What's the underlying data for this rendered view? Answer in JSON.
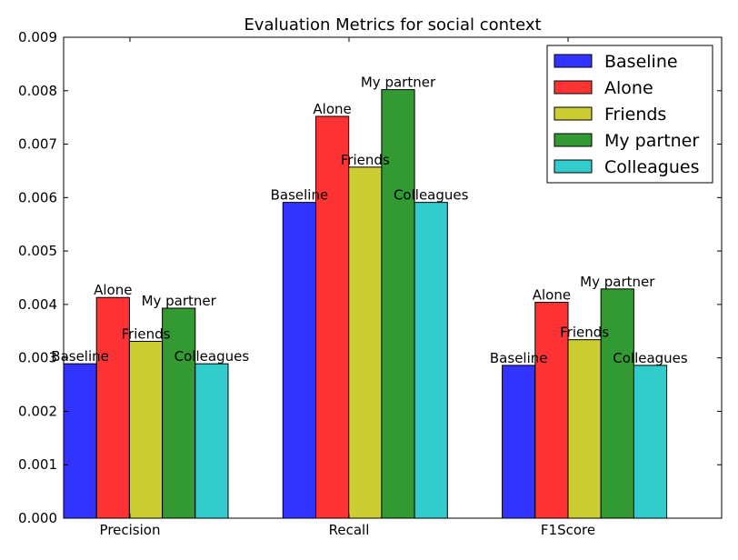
{
  "chart_data": {
    "type": "bar",
    "title": "Evaluation Metrics for social context",
    "categories": [
      "Precision",
      "Recall",
      "F1Score"
    ],
    "series": [
      {
        "name": "Baseline",
        "color": "#3333ff",
        "values": [
          0.00289,
          0.00591,
          0.00286
        ]
      },
      {
        "name": "Alone",
        "color": "#ff3333",
        "values": [
          0.00413,
          0.00752,
          0.00404
        ]
      },
      {
        "name": "Friends",
        "color": "#cccc33",
        "values": [
          0.00331,
          0.00657,
          0.00334
        ]
      },
      {
        "name": "My partner",
        "color": "#339933",
        "values": [
          0.00393,
          0.00802,
          0.00429
        ]
      },
      {
        "name": "Colleagues",
        "color": "#33cccc",
        "values": [
          0.00289,
          0.00591,
          0.00286
        ]
      }
    ],
    "ylim": [
      0,
      0.009
    ],
    "yticks": [
      "0.000",
      "0.001",
      "0.002",
      "0.003",
      "0.004",
      "0.005",
      "0.006",
      "0.007",
      "0.008",
      "0.009"
    ],
    "xlabel": "",
    "ylabel": "",
    "legend": "top-right",
    "grid": false
  }
}
